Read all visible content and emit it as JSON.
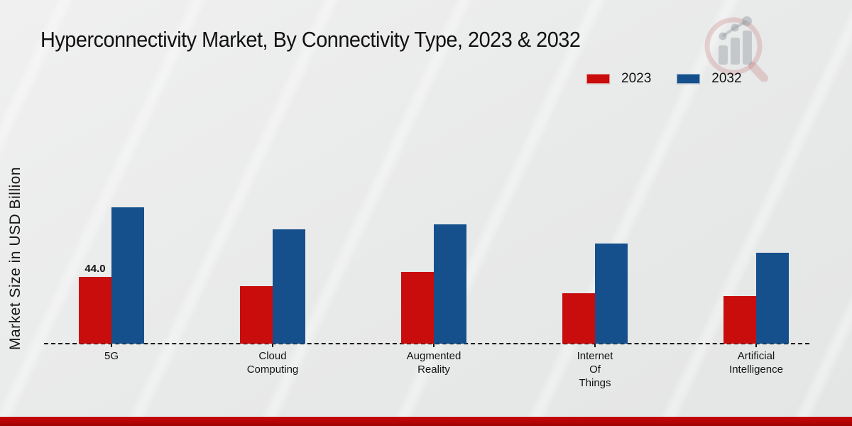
{
  "chart_data": {
    "type": "bar",
    "title": "Hyperconnectivity Market, By Connectivity Type, 2023 & 2032",
    "ylabel": "Market Size in USD Billion",
    "xlabel": "",
    "categories": [
      "5G",
      "Cloud\nComputing",
      "Augmented\nReality",
      "Internet\nOf\nThings",
      "Artificial\nIntelligence"
    ],
    "series": [
      {
        "name": "2023",
        "color": "#c90d0d",
        "values": [
          44.0,
          38.0,
          47.5,
          33.0,
          31.5
        ]
      },
      {
        "name": "2032",
        "color": "#15508d",
        "values": [
          90.0,
          75.5,
          78.5,
          66.0,
          60.0
        ]
      }
    ],
    "bar_labels": [
      {
        "category_index": 0,
        "series_index": 0,
        "text": "44.0"
      }
    ],
    "ylim": [
      0,
      95
    ],
    "grid": false,
    "y_ticks_visible": false,
    "baseline_style": "dashed",
    "legend_position": "top-right"
  },
  "colors": {
    "series_2023": "#c90d0d",
    "series_2032": "#15508d",
    "background": "#e9eaea",
    "axis": "#141414",
    "footer_bar": "#b30404"
  },
  "watermark_icon": "magnifier-growth-chart-icon"
}
